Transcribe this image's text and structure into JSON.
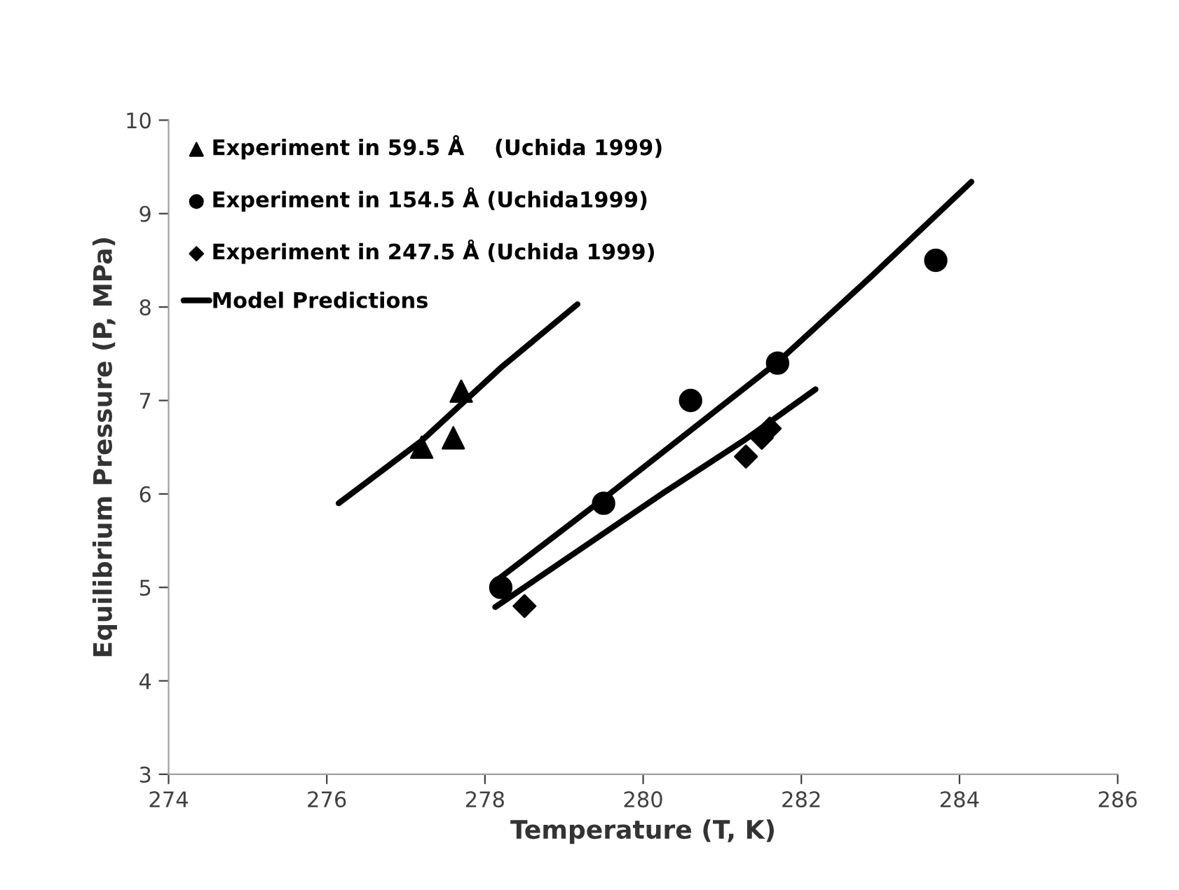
{
  "chart_data": {
    "type": "scatter",
    "xlabel": "Temperature (T, K)",
    "ylabel": "Equilibrium Pressure (P, MPa)",
    "xlim": [
      274,
      286
    ],
    "xticks": [
      274,
      276,
      278,
      280,
      282,
      284,
      286
    ],
    "ylim": [
      3,
      10
    ],
    "yticks": [
      3,
      4,
      5,
      6,
      7,
      8,
      9,
      10
    ],
    "grid": false,
    "legend": "top left",
    "series": [
      {
        "name": "Experiment in 59.5 Å    (Uchida 1999)",
        "marker": "triangle",
        "color": "#000000",
        "x": [
          277.2,
          277.6,
          277.7
        ],
        "values": [
          6.5,
          6.6,
          7.1
        ]
      },
      {
        "name": "Experiment in 154.5 Å (Uchida1999)",
        "marker": "circle",
        "color": "#000000",
        "x": [
          278.2,
          279.5,
          280.6,
          281.7,
          283.7
        ],
        "values": [
          5.0,
          5.9,
          7.0,
          7.4,
          8.5
        ]
      },
      {
        "name": "Experiment in 247.5 Å (Uchida 1999)",
        "marker": "diamond",
        "color": "#000000",
        "x": [
          278.5,
          281.3,
          281.5,
          281.6
        ],
        "values": [
          4.8,
          6.4,
          6.6,
          6.7
        ]
      },
      {
        "name": "Model Predictions",
        "type": "line",
        "marker": "none",
        "line_style": "solid",
        "color": "#000000",
        "x": [
          276.15,
          277.2,
          278.2,
          279.17
        ],
        "values": [
          5.9,
          6.57,
          7.35,
          8.03
        ]
      },
      {
        "type": "line",
        "marker": "none",
        "line_style": "solid",
        "color": "#000000",
        "x": [
          278.17,
          279.5,
          281.7,
          282.9,
          284.15
        ],
        "values": [
          5.09,
          5.95,
          7.41,
          8.34,
          9.34
        ]
      },
      {
        "type": "line",
        "marker": "none",
        "line_style": "solid",
        "color": "#000000",
        "x": [
          278.13,
          280.27,
          281.27,
          282.18
        ],
        "values": [
          4.79,
          6.02,
          6.57,
          7.12
        ]
      }
    ]
  }
}
